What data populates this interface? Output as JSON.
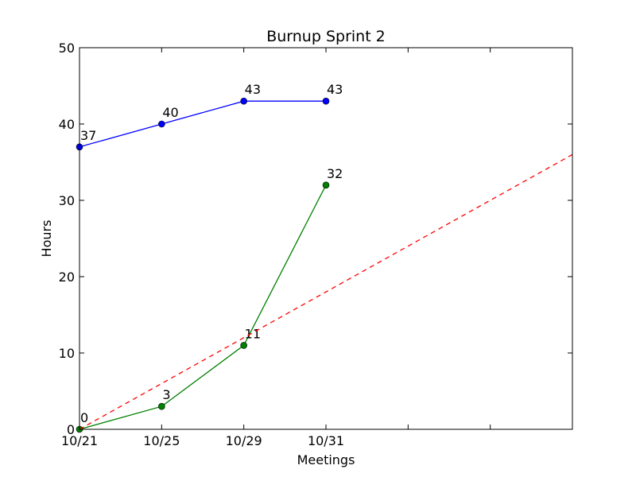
{
  "chart_data": {
    "type": "line",
    "title": "Burnup Sprint 2",
    "xlabel": "Meetings",
    "ylabel": "Hours",
    "categories": [
      "10/21",
      "10/25",
      "10/29",
      "10/31",
      "",
      ""
    ],
    "xlim": [
      0,
      6
    ],
    "ylim": [
      0,
      50
    ],
    "yticks": [
      0,
      10,
      20,
      30,
      40,
      50
    ],
    "grid": false,
    "series": [
      {
        "name": "",
        "color": "#0000ff",
        "style": "solid",
        "marker": "circle",
        "x": [
          0,
          1,
          2,
          3
        ],
        "values": [
          37,
          40,
          43,
          43
        ],
        "labels": [
          "37",
          "40",
          "43",
          "43"
        ]
      },
      {
        "name": "",
        "color": "#008000",
        "style": "solid",
        "marker": "circle",
        "x": [
          0,
          1,
          2,
          3
        ],
        "values": [
          0,
          3,
          11,
          32
        ],
        "labels": [
          "0",
          "3",
          "11",
          "32"
        ]
      },
      {
        "name": "",
        "color": "#ff0000",
        "style": "dashed",
        "marker": "none",
        "x": [
          0,
          6
        ],
        "values": [
          0,
          36
        ],
        "labels": []
      }
    ]
  }
}
